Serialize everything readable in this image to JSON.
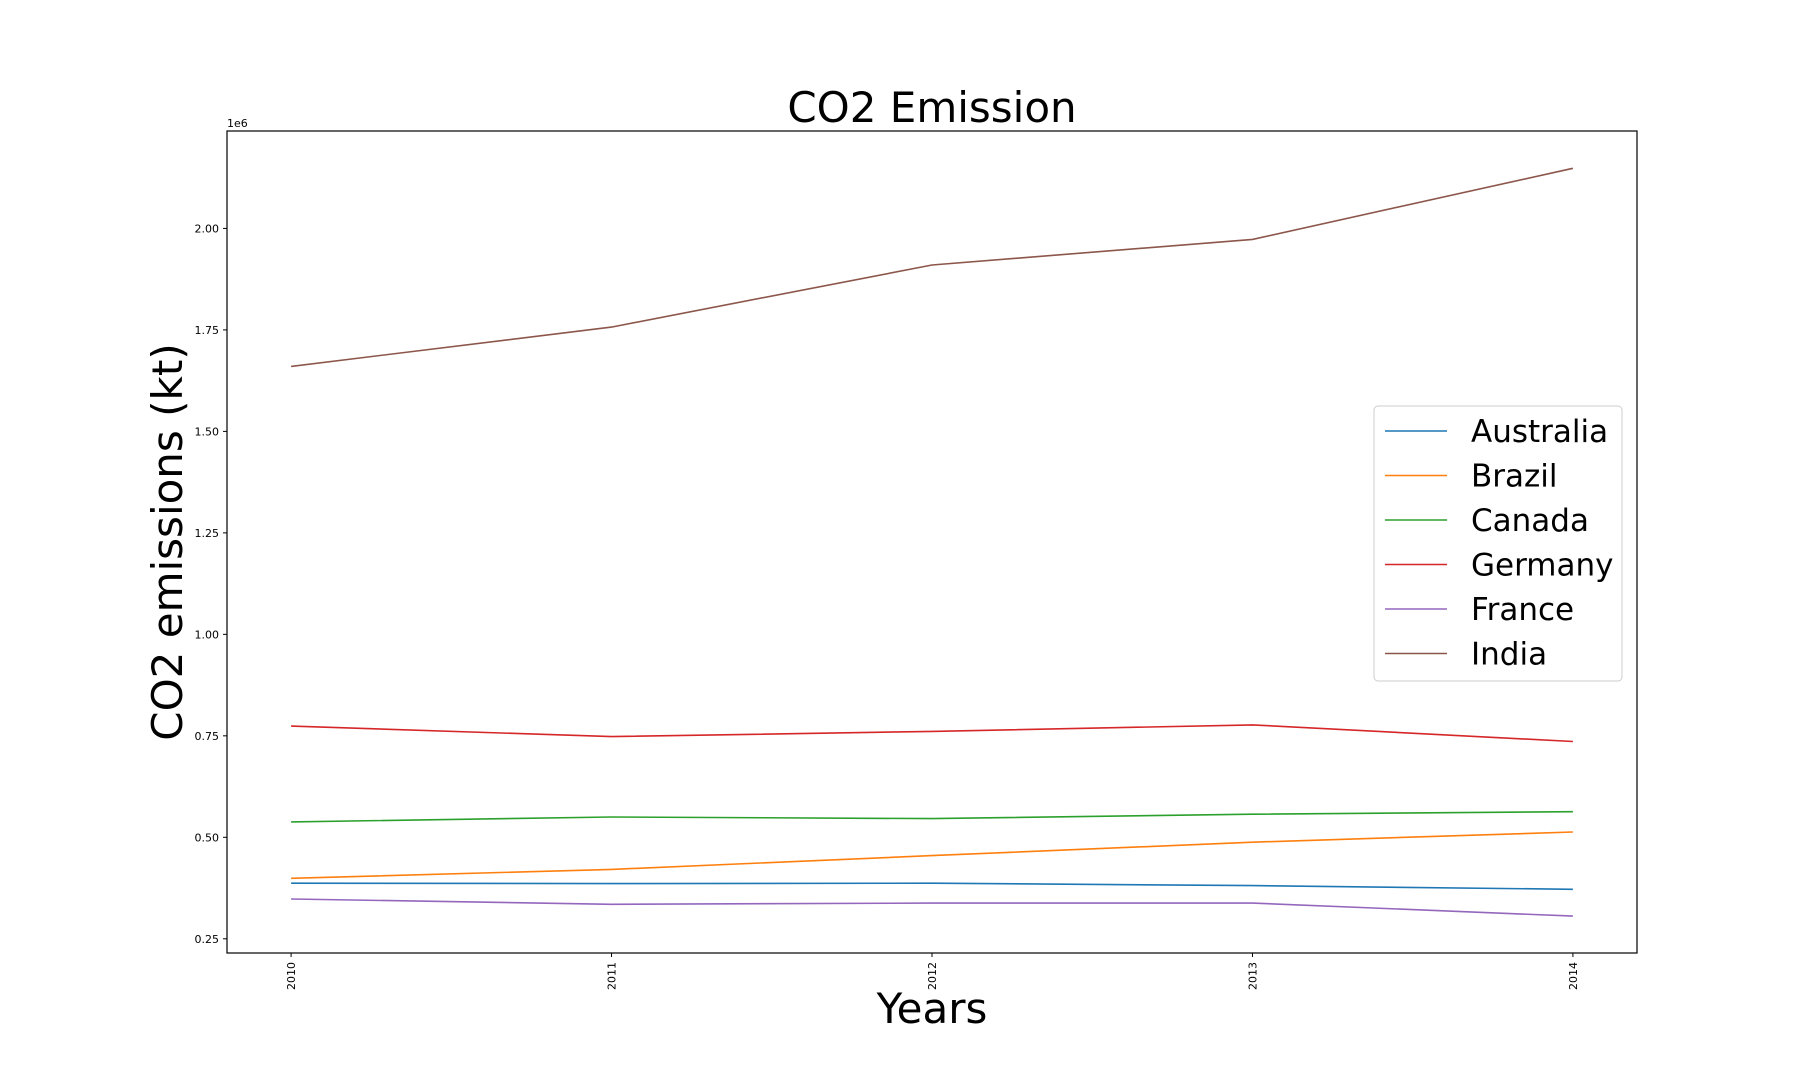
{
  "chart_data": {
    "type": "line",
    "title": "CO2 Emission",
    "xlabel": "Years",
    "ylabel": "CO2 emissions (kt)",
    "y_offset_label": "1e6",
    "x": [
      "2010",
      "2011",
      "2012",
      "2013",
      "2014"
    ],
    "xlim": [
      2009.8,
      2014.2
    ],
    "ylim": [
      0.215,
      2.24
    ],
    "y_ticks": [
      0.25,
      0.5,
      0.75,
      1.0,
      1.25,
      1.5,
      1.75,
      2.0
    ],
    "y_tick_labels": [
      "0.25",
      "0.50",
      "0.75",
      "1.00",
      "1.25",
      "1.50",
      "1.75",
      "2.00"
    ],
    "grid": false,
    "legend_position": "center-right",
    "series": [
      {
        "name": "Australia",
        "color": "#1f77b4",
        "values": [
          0.387,
          0.386,
          0.387,
          0.381,
          0.372
        ]
      },
      {
        "name": "Brazil",
        "color": "#ff7f0e",
        "values": [
          0.399,
          0.421,
          0.455,
          0.488,
          0.513
        ]
      },
      {
        "name": "Canada",
        "color": "#2ca02c",
        "values": [
          0.538,
          0.55,
          0.546,
          0.557,
          0.563
        ]
      },
      {
        "name": "Germany",
        "color": "#d62728",
        "values": [
          0.774,
          0.748,
          0.761,
          0.777,
          0.736
        ]
      },
      {
        "name": "France",
        "color": "#9467bd",
        "values": [
          0.348,
          0.335,
          0.338,
          0.338,
          0.306
        ]
      },
      {
        "name": "India",
        "color": "#8c564b",
        "values": [
          1.66,
          1.757,
          1.91,
          1.973,
          2.148
        ]
      }
    ]
  }
}
